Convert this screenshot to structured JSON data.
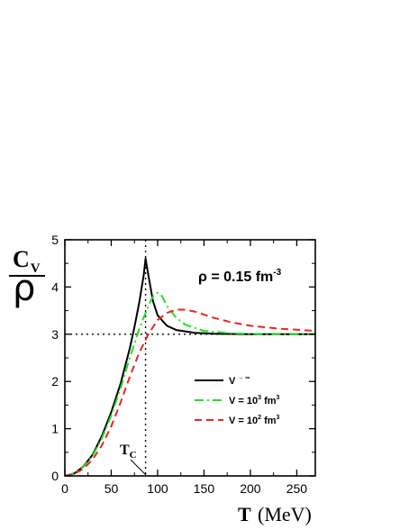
{
  "chart_data": {
    "type": "line",
    "xlabel": "T",
    "xlabel_unit": "(MeV)",
    "ylabel_main": "C",
    "ylabel_sub": "V",
    "ylabel_den": "ρ",
    "xlim": [
      0,
      270
    ],
    "ylim": [
      0,
      5
    ],
    "x_ticks": [
      0,
      50,
      100,
      150,
      200,
      250
    ],
    "y_ticks": [
      0,
      1,
      2,
      3,
      4,
      5
    ],
    "x_tick_labels": [
      "0",
      "50",
      "100",
      "150",
      "200",
      "250"
    ],
    "y_tick_labels": [
      "0",
      "1",
      "2",
      "3",
      "4",
      "5"
    ],
    "annotation": {
      "base": "ρ = 0.15 fm",
      "sup": "-3"
    },
    "tc_label": {
      "base": "T",
      "sub": "C"
    },
    "critical_temperature": 87,
    "reference_level": 3,
    "series": [
      {
        "name": "V → ∞",
        "legend_parts": [
          "V",
          " → ∞",
          "",
          ""
        ],
        "color": "#000000",
        "dash": "none",
        "x": [
          0,
          10,
          20,
          30,
          40,
          50,
          60,
          70,
          75,
          80,
          85,
          87,
          90,
          95,
          100,
          110,
          120,
          140,
          160,
          200,
          270
        ],
        "y": [
          0,
          0.05,
          0.2,
          0.45,
          0.85,
          1.35,
          1.95,
          2.7,
          3.15,
          3.65,
          4.25,
          4.6,
          4.25,
          3.7,
          3.4,
          3.18,
          3.09,
          3.03,
          3.01,
          3.0,
          3.0
        ]
      },
      {
        "name": "V = 10^3 fm^3",
        "legend_parts": [
          "V = 10",
          "3",
          " fm",
          "3"
        ],
        "color": "#22dd22",
        "dash": "10,4,2,4",
        "x": [
          0,
          10,
          20,
          30,
          40,
          50,
          60,
          70,
          80,
          90,
          95,
          100,
          105,
          110,
          120,
          130,
          150,
          180,
          220,
          270
        ],
        "y": [
          0,
          0.05,
          0.19,
          0.43,
          0.8,
          1.28,
          1.85,
          2.5,
          3.1,
          3.6,
          3.8,
          3.88,
          3.8,
          3.6,
          3.35,
          3.2,
          3.07,
          3.02,
          3.0,
          3.0
        ]
      },
      {
        "name": "V = 10^2 fm^3",
        "legend_parts": [
          "V = 10",
          "2",
          " fm",
          "3"
        ],
        "color": "#ee2222",
        "dash": "8,5",
        "x": [
          0,
          10,
          20,
          30,
          40,
          50,
          60,
          70,
          80,
          90,
          100,
          110,
          120,
          130,
          140,
          160,
          180,
          200,
          230,
          270
        ],
        "y": [
          0,
          0.04,
          0.15,
          0.35,
          0.65,
          1.05,
          1.55,
          2.1,
          2.6,
          3.0,
          3.3,
          3.45,
          3.52,
          3.52,
          3.48,
          3.35,
          3.25,
          3.18,
          3.12,
          3.07
        ]
      }
    ]
  }
}
